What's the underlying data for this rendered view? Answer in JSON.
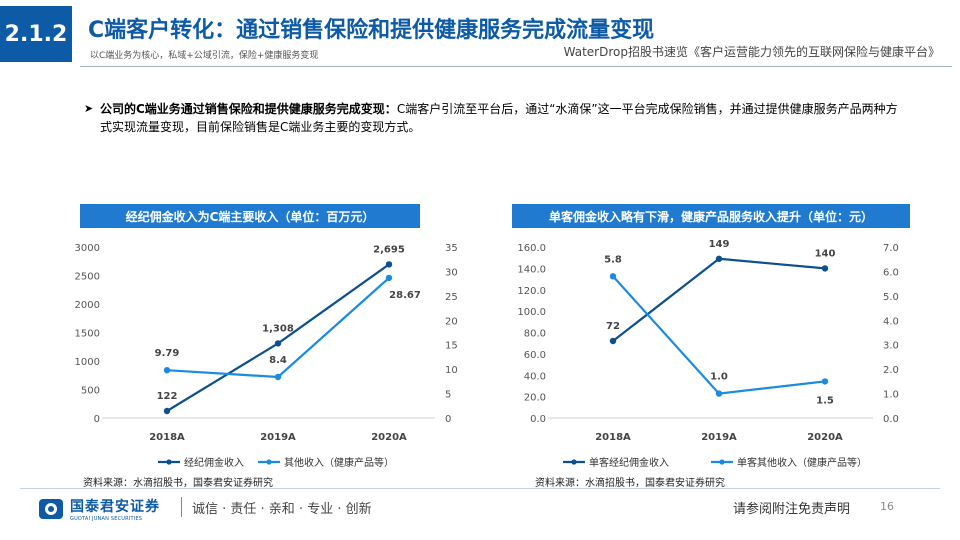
{
  "header": {
    "section": "2.1.2",
    "title": "C端客户转化：通过销售保险和提供健康服务完成流量变现",
    "subtitle": "以C端业务为核心，私域+公域引流，保险+健康服务变现",
    "source_ref": "WaterDrop招股书速览《客户运营能力领先的互联网保险与健康平台》"
  },
  "bullet": {
    "bold": "公司的C端业务通过销售保险和提供健康服务完成变现：",
    "text": "C端客户引流至平台后，通过“水滴保”这一平台完成保险销售，并通过提供健康服务产品两种方式实现流量变现，目前保险销售是C端业务主要的变现方式。"
  },
  "chart_data": [
    {
      "type": "line",
      "title": "经纪佣金收入为C端主要收入（单位：百万元）",
      "categories": [
        "2018A",
        "2019A",
        "2020A"
      ],
      "series": [
        {
          "name": "经纪佣金收入",
          "axis": "left",
          "values": [
            122,
            1308,
            2695
          ],
          "labels": [
            "122",
            "1,308",
            "2,695"
          ],
          "color": "#0d4f8f"
        },
        {
          "name": "其他收入（健康产品等）",
          "axis": "right",
          "values": [
            9.79,
            8.4,
            28.67
          ],
          "labels": [
            "9.79",
            "8.4",
            "28.67"
          ],
          "color": "#1a8be0"
        }
      ],
      "y_left": {
        "min": 0,
        "max": 3000,
        "ticks": [
          "0",
          "500",
          "1000",
          "1500",
          "2000",
          "2500",
          "3000"
        ]
      },
      "y_right": {
        "min": 0,
        "max": 35,
        "ticks": [
          "0",
          "5",
          "10",
          "15",
          "20",
          "25",
          "30",
          "35"
        ]
      },
      "legend_position": "bottom",
      "source": "资料来源：水滴招股书，国泰君安证券研究"
    },
    {
      "type": "line",
      "title": "单客佣金收入略有下滑，健康产品服务收入提升（单位：元）",
      "categories": [
        "2018A",
        "2019A",
        "2020A"
      ],
      "series": [
        {
          "name": "单客经纪佣金收入",
          "axis": "left",
          "values": [
            72,
            149,
            140
          ],
          "labels": [
            "72",
            "149",
            "140"
          ],
          "color": "#0d4f8f"
        },
        {
          "name": "单客其他收入（健康产品等）",
          "axis": "right",
          "values": [
            5.8,
            1.0,
            1.5
          ],
          "labels": [
            "5.8",
            "1.0",
            "1.5"
          ],
          "color": "#1a8be0"
        }
      ],
      "y_left": {
        "min": 0,
        "max": 160,
        "ticks": [
          "0.0",
          "20.0",
          "40.0",
          "60.0",
          "80.0",
          "100.0",
          "120.0",
          "140.0",
          "160.0"
        ]
      },
      "y_right": {
        "min": 0,
        "max": 7,
        "ticks": [
          "0.0",
          "1.0",
          "2.0",
          "3.0",
          "4.0",
          "5.0",
          "6.0",
          "7.0"
        ]
      },
      "legend_position": "bottom",
      "source": "资料来源：水滴招股书，国泰君安证券研究"
    }
  ],
  "footer": {
    "logo_cn": "国泰君安证券",
    "logo_en": "GUOTAI JUNAN SECURITIES",
    "slogan": "诚信 · 责任 · 亲和 · 专业 · 创新",
    "disclaimer": "请参阅附注免责声明",
    "page": "16"
  },
  "colors": {
    "brand": "#0d5aa7",
    "title_bar": "#1f7ad0",
    "series_dark": "#0d4f8f",
    "series_light": "#1a8be0"
  }
}
